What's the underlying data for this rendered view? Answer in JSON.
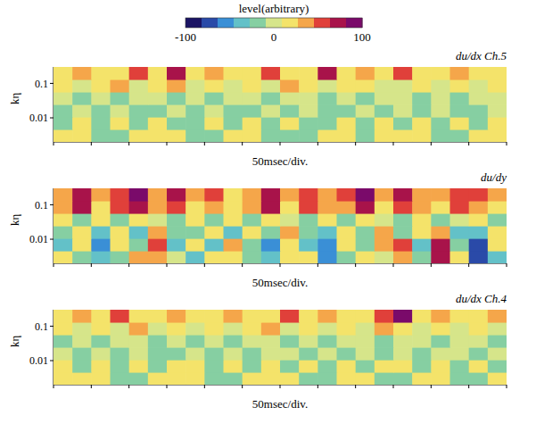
{
  "colorbar": {
    "title": "level(arbitrary)",
    "range": [
      -100,
      100
    ],
    "ticks": [
      -100,
      0,
      100
    ],
    "colors": [
      "#1b1464",
      "#2a4aa8",
      "#3a8fd6",
      "#63c1c8",
      "#86cfa2",
      "#d6e58a",
      "#f4e36a",
      "#f5a64a",
      "#e0403a",
      "#a8134a",
      "#7a0a6a"
    ]
  },
  "chart_data": [
    {
      "type": "heatmap",
      "title": "du/dx Ch.5",
      "x_label": "50msec/div.",
      "y_label": "kη",
      "log": "y",
      "tick_labels": "y",
      "xlim": [
        0,
        600
      ],
      "xticks": [
        0,
        50,
        100,
        150,
        200,
        250,
        300,
        350,
        400,
        450,
        500,
        550,
        600
      ],
      "ylim": [
        0.002,
        0.3
      ],
      "yticks": [
        0.01,
        0.1
      ],
      "x": [
        12.5,
        37.5,
        62.5,
        87.5,
        112.5,
        137.5,
        162.5,
        187.5,
        212.5,
        237.5,
        262.5,
        287.5,
        312.5,
        337.5,
        362.5,
        387.5,
        412.5,
        437.5,
        462.5,
        487.5,
        512.5,
        537.5,
        562.5,
        587.5
      ],
      "k_eta": [
        0.00304,
        0.007,
        0.0161,
        0.0372,
        0.0858,
        0.198
      ],
      "cells": [
        [
          15,
          15,
          -20,
          -20,
          15,
          15,
          15,
          -20,
          -20,
          15,
          15,
          -20,
          -20,
          -20,
          15,
          15,
          -20,
          15,
          15,
          15,
          -20,
          -20,
          15,
          15
        ],
        [
          -20,
          15,
          -20,
          15,
          -20,
          15,
          -20,
          -20,
          15,
          -20,
          15,
          -20,
          15,
          -20,
          -20,
          15,
          -20,
          15,
          -20,
          15,
          -20,
          15,
          -20,
          15
        ],
        [
          -20,
          0,
          -20,
          0,
          -20,
          -20,
          0,
          -20,
          0,
          -20,
          -20,
          0,
          -20,
          0,
          -20,
          -20,
          0,
          -20,
          0,
          -20,
          0,
          -20,
          -20,
          0
        ],
        [
          0,
          -20,
          0,
          -20,
          0,
          0,
          -20,
          0,
          -20,
          0,
          0,
          -20,
          0,
          0,
          -20,
          0,
          -20,
          0,
          0,
          -20,
          0,
          -20,
          0,
          0
        ],
        [
          10,
          0,
          10,
          30,
          0,
          10,
          40,
          0,
          10,
          0,
          10,
          0,
          30,
          10,
          0,
          10,
          10,
          0,
          0,
          10,
          0,
          10,
          0,
          10
        ],
        [
          10,
          40,
          10,
          10,
          60,
          10,
          70,
          10,
          30,
          10,
          10,
          60,
          10,
          10,
          80,
          10,
          40,
          10,
          60,
          10,
          10,
          40,
          10,
          10
        ]
      ]
    },
    {
      "type": "heatmap",
      "title": "du/dy",
      "x_label": "50msec/div.",
      "y_label": "kη",
      "log": "y",
      "tick_labels": "y",
      "xlim": [
        0,
        600
      ],
      "xticks": [
        0,
        50,
        100,
        150,
        200,
        250,
        300,
        350,
        400,
        450,
        500,
        550,
        600
      ],
      "ylim": [
        0.002,
        0.3
      ],
      "yticks": [
        0.01,
        0.1
      ],
      "x": [
        12.5,
        37.5,
        62.5,
        87.5,
        112.5,
        137.5,
        162.5,
        187.5,
        212.5,
        237.5,
        262.5,
        287.5,
        312.5,
        337.5,
        362.5,
        387.5,
        412.5,
        437.5,
        462.5,
        487.5,
        512.5,
        537.5,
        562.5,
        587.5
      ],
      "k_eta": [
        0.00304,
        0.007,
        0.0161,
        0.0372,
        0.0858,
        0.198
      ],
      "cells": [
        [
          10,
          -20,
          -40,
          -10,
          30,
          40,
          0,
          -30,
          10,
          20,
          -10,
          -30,
          10,
          20,
          -50,
          -20,
          20,
          0,
          30,
          -20,
          80,
          10,
          -80,
          -30
        ],
        [
          -30,
          20,
          -60,
          10,
          -20,
          50,
          -30,
          10,
          -40,
          30,
          -10,
          -50,
          20,
          -30,
          -60,
          10,
          -20,
          30,
          60,
          -30,
          70,
          -20,
          -70,
          20
        ],
        [
          -20,
          10,
          -40,
          20,
          -30,
          30,
          -20,
          -10,
          20,
          -30,
          10,
          -20,
          30,
          -20,
          -40,
          20,
          -10,
          40,
          -20,
          10,
          30,
          -30,
          -40,
          10
        ],
        [
          10,
          -10,
          20,
          -20,
          10,
          0,
          -10,
          20,
          -10,
          10,
          -20,
          20,
          0,
          -10,
          10,
          -20,
          20,
          0,
          -10,
          10,
          -20,
          0,
          10,
          -10
        ],
        [
          40,
          70,
          20,
          50,
          80,
          30,
          60,
          20,
          40,
          10,
          30,
          70,
          20,
          50,
          30,
          40,
          80,
          20,
          60,
          30,
          20,
          50,
          40,
          20
        ],
        [
          30,
          80,
          40,
          60,
          85,
          40,
          70,
          30,
          50,
          20,
          40,
          80,
          30,
          60,
          40,
          50,
          90,
          30,
          70,
          40,
          30,
          60,
          50,
          30
        ]
      ]
    },
    {
      "type": "heatmap",
      "title": "du/dx Ch.4",
      "x_label": "50msec/div.",
      "y_label": "kη",
      "log": "y",
      "tick_labels": "y",
      "xlim": [
        0,
        600
      ],
      "xticks": [
        0,
        50,
        100,
        150,
        200,
        250,
        300,
        350,
        400,
        450,
        500,
        550,
        600
      ],
      "ylim": [
        0.002,
        0.3
      ],
      "yticks": [
        0.01,
        0.1
      ],
      "x": [
        12.5,
        37.5,
        62.5,
        87.5,
        112.5,
        137.5,
        162.5,
        187.5,
        212.5,
        237.5,
        262.5,
        287.5,
        312.5,
        337.5,
        362.5,
        387.5,
        412.5,
        437.5,
        462.5,
        487.5,
        512.5,
        537.5,
        562.5,
        587.5
      ],
      "k_eta": [
        0.00304,
        0.007,
        0.0161,
        0.0372,
        0.0858,
        0.198
      ],
      "cells": [
        [
          15,
          15,
          15,
          -20,
          -20,
          15,
          15,
          15,
          -20,
          -20,
          15,
          15,
          15,
          -20,
          -20,
          15,
          15,
          -20,
          -20,
          15,
          15,
          -20,
          -20,
          15
        ],
        [
          15,
          -20,
          15,
          -20,
          15,
          -20,
          15,
          15,
          -20,
          15,
          -20,
          15,
          -20,
          15,
          -20,
          15,
          -20,
          15,
          15,
          -20,
          15,
          -20,
          15,
          -20
        ],
        [
          0,
          -20,
          0,
          -20,
          0,
          -20,
          -20,
          0,
          -20,
          0,
          -20,
          0,
          0,
          -20,
          0,
          -20,
          0,
          -20,
          0,
          -20,
          0,
          0,
          -20,
          0
        ],
        [
          -20,
          0,
          -20,
          0,
          0,
          -20,
          0,
          -20,
          0,
          -20,
          0,
          0,
          -20,
          0,
          -20,
          0,
          0,
          -20,
          0,
          0,
          -20,
          0,
          0,
          -20
        ],
        [
          10,
          0,
          10,
          0,
          30,
          0,
          10,
          0,
          10,
          0,
          10,
          30,
          0,
          10,
          0,
          10,
          0,
          40,
          10,
          0,
          10,
          0,
          10,
          0
        ],
        [
          10,
          30,
          10,
          50,
          10,
          10,
          40,
          10,
          10,
          30,
          10,
          10,
          50,
          10,
          40,
          10,
          10,
          60,
          85,
          10,
          30,
          10,
          10,
          40
        ]
      ]
    }
  ]
}
